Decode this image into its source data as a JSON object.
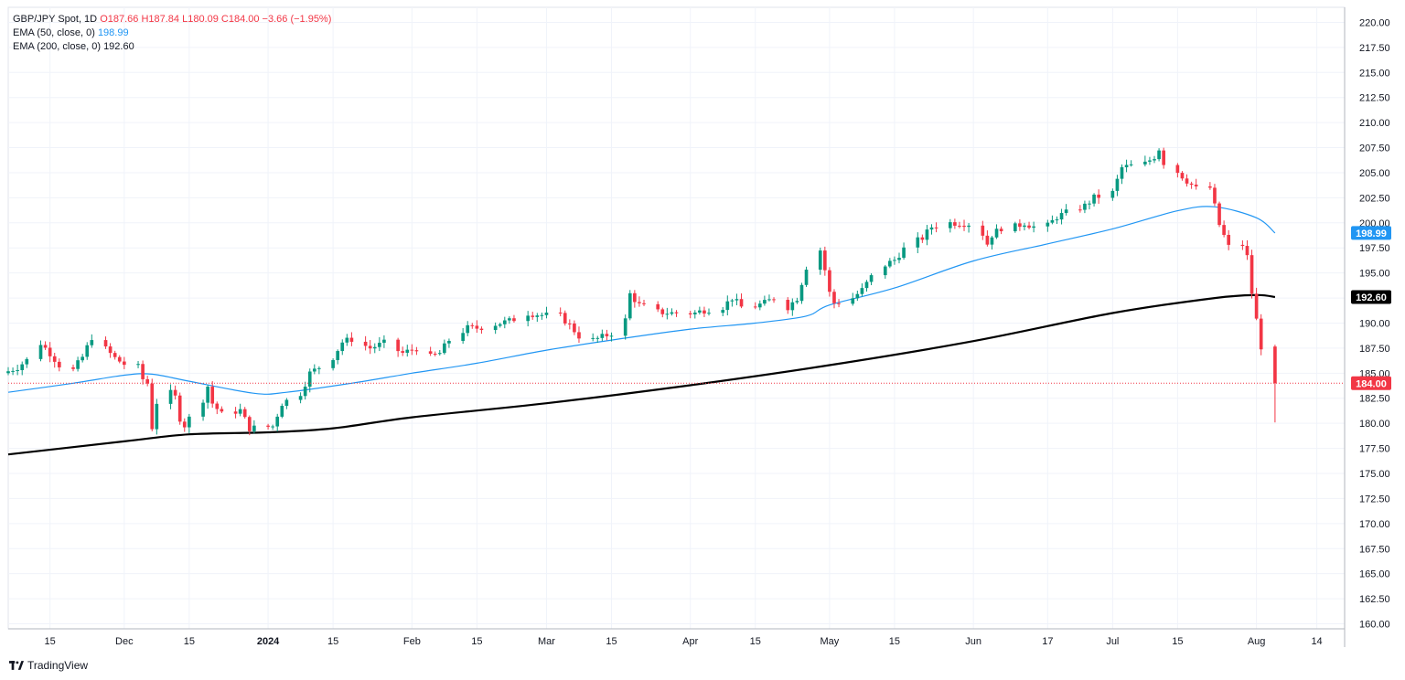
{
  "legend": {
    "symbol": "GBP/JPY Spot, 1D",
    "ohlc": "O187.66  H187.84  L180.09  C184.00  −3.66 (−1.95%)",
    "ema50_label": "EMA (50, close, 0)",
    "ema50_value": "198.99",
    "ema200_label": "EMA (200, close, 0)",
    "ema200_value": "192.60"
  },
  "brand": "TradingView",
  "colors": {
    "up": "#089981",
    "down": "#f23645",
    "ema50": "#2196f3",
    "ema200": "#000000",
    "grid": "#f0f3fa"
  },
  "chart_data": {
    "type": "candlestick",
    "title": "GBP/JPY Spot, 1D",
    "y_axis": {
      "range": [
        159.5,
        221.5
      ],
      "ticks": [
        "220.00",
        "217.50",
        "215.00",
        "212.50",
        "210.00",
        "207.50",
        "205.00",
        "202.50",
        "200.00",
        "197.50",
        "195.00",
        "192.50",
        "190.00",
        "187.50",
        "185.00",
        "182.50",
        "180.00",
        "177.50",
        "175.00",
        "172.50",
        "170.00",
        "167.50",
        "165.00",
        "162.50",
        "160.00"
      ]
    },
    "x_axis": {
      "range": [
        "2023-11-06",
        "2024-08-20"
      ],
      "ticks": [
        {
          "label": "15",
          "date": "2023-11-15",
          "bold": false
        },
        {
          "label": "Dec",
          "date": "2023-12-01",
          "bold": false
        },
        {
          "label": "15",
          "date": "2023-12-15",
          "bold": false
        },
        {
          "label": "2024",
          "date": "2024-01-01",
          "bold": true
        },
        {
          "label": "15",
          "date": "2024-01-15",
          "bold": false
        },
        {
          "label": "Feb",
          "date": "2024-02-01",
          "bold": false
        },
        {
          "label": "15",
          "date": "2024-02-15",
          "bold": false
        },
        {
          "label": "Mar",
          "date": "2024-03-01",
          "bold": false
        },
        {
          "label": "15",
          "date": "2024-03-15",
          "bold": false
        },
        {
          "label": "Apr",
          "date": "2024-04-01",
          "bold": false
        },
        {
          "label": "15",
          "date": "2024-04-15",
          "bold": false
        },
        {
          "label": "May",
          "date": "2024-05-01",
          "bold": false
        },
        {
          "label": "15",
          "date": "2024-05-15",
          "bold": false
        },
        {
          "label": "Jun",
          "date": "2024-06-01",
          "bold": false
        },
        {
          "label": "17",
          "date": "2024-06-17",
          "bold": false
        },
        {
          "label": "Jul",
          "date": "2024-07-01",
          "bold": false
        },
        {
          "label": "15",
          "date": "2024-07-15",
          "bold": false
        },
        {
          "label": "Aug",
          "date": "2024-08-01",
          "bold": false
        },
        {
          "label": "14",
          "date": "2024-08-14",
          "bold": false
        }
      ]
    },
    "last_price": {
      "value": 184.0,
      "label": "184.00"
    },
    "ema50_last": {
      "value": 198.99,
      "label": "198.99"
    },
    "ema200_last": {
      "value": 192.6,
      "label": "192.60"
    },
    "close_path": [
      [
        "2023-11-06",
        185.2
      ],
      [
        "2023-11-08",
        185.6
      ],
      [
        "2023-11-10",
        186.3
      ],
      [
        "2023-11-13",
        188.0
      ],
      [
        "2023-11-15",
        187.0
      ],
      [
        "2023-11-17",
        185.8
      ],
      [
        "2023-11-20",
        185.3
      ],
      [
        "2023-11-22",
        186.6
      ],
      [
        "2023-11-24",
        188.6
      ],
      [
        "2023-11-27",
        187.4
      ],
      [
        "2023-11-29",
        186.5
      ],
      [
        "2023-12-01",
        185.9
      ],
      [
        "2023-12-04",
        185.6
      ],
      [
        "2023-12-05",
        184.4
      ],
      [
        "2023-12-06",
        184.0
      ],
      [
        "2023-12-07",
        179.6
      ],
      [
        "2023-12-08",
        182.1
      ],
      [
        "2023-12-11",
        183.0
      ],
      [
        "2023-12-12",
        182.6
      ],
      [
        "2023-12-13",
        180.5
      ],
      [
        "2023-12-14",
        179.8
      ],
      [
        "2023-12-15",
        180.5
      ],
      [
        "2023-12-18",
        182.4
      ],
      [
        "2023-12-19",
        183.7
      ],
      [
        "2023-12-20",
        182.0
      ],
      [
        "2023-12-22",
        180.9
      ],
      [
        "2023-12-26",
        181.3
      ],
      [
        "2023-12-28",
        179.5
      ],
      [
        "2024-01-02",
        179.7
      ],
      [
        "2024-01-04",
        182.0
      ],
      [
        "2024-01-08",
        183.0
      ],
      [
        "2024-01-10",
        185.0
      ],
      [
        "2024-01-12",
        185.6
      ],
      [
        "2024-01-15",
        186.6
      ],
      [
        "2024-01-17",
        188.1
      ],
      [
        "2024-01-19",
        188.4
      ],
      [
        "2024-01-23",
        187.5
      ],
      [
        "2024-01-26",
        188.0
      ],
      [
        "2024-01-30",
        187.0
      ],
      [
        "2024-02-02",
        187.5
      ],
      [
        "2024-02-05",
        186.6
      ],
      [
        "2024-02-07",
        187.0
      ],
      [
        "2024-02-09",
        188.3
      ],
      [
        "2024-02-13",
        189.5
      ],
      [
        "2024-02-15",
        189.5
      ],
      [
        "2024-02-19",
        189.9
      ],
      [
        "2024-02-22",
        190.2
      ],
      [
        "2024-02-26",
        191.0
      ],
      [
        "2024-02-29",
        190.8
      ],
      [
        "2024-03-04",
        190.7
      ],
      [
        "2024-03-06",
        189.8
      ],
      [
        "2024-03-08",
        188.7
      ],
      [
        "2024-03-11",
        188.3
      ],
      [
        "2024-03-13",
        188.6
      ],
      [
        "2024-03-15",
        189.0
      ],
      [
        "2024-03-18",
        190.3
      ],
      [
        "2024-03-19",
        192.9
      ],
      [
        "2024-03-21",
        191.8
      ],
      [
        "2024-03-25",
        191.1
      ],
      [
        "2024-03-28",
        191.0
      ],
      [
        "2024-04-02",
        191.0
      ],
      [
        "2024-04-04",
        191.3
      ],
      [
        "2024-04-08",
        191.6
      ],
      [
        "2024-04-10",
        192.5
      ],
      [
        "2024-04-12",
        191.6
      ],
      [
        "2024-04-15",
        191.7
      ],
      [
        "2024-04-17",
        192.0
      ],
      [
        "2024-04-19",
        192.5
      ],
      [
        "2024-04-22",
        191.6
      ],
      [
        "2024-04-24",
        192.5
      ],
      [
        "2024-04-26",
        195.6
      ],
      [
        "2024-04-29",
        197.3
      ],
      [
        "2024-04-30",
        195.3
      ],
      [
        "2024-05-01",
        193.0
      ],
      [
        "2024-05-02",
        192.0
      ],
      [
        "2024-05-03",
        192.1
      ],
      [
        "2024-05-06",
        192.5
      ],
      [
        "2024-05-08",
        193.3
      ],
      [
        "2024-05-10",
        194.6
      ],
      [
        "2024-05-13",
        195.8
      ],
      [
        "2024-05-15",
        196.3
      ],
      [
        "2024-05-17",
        197.4
      ],
      [
        "2024-05-21",
        198.5
      ],
      [
        "2024-05-23",
        199.6
      ],
      [
        "2024-05-27",
        200.0
      ],
      [
        "2024-05-29",
        200.0
      ],
      [
        "2024-05-31",
        199.9
      ],
      [
        "2024-06-03",
        198.9
      ],
      [
        "2024-06-04",
        197.9
      ],
      [
        "2024-06-05",
        198.8
      ],
      [
        "2024-06-07",
        199.5
      ],
      [
        "2024-06-10",
        199.6
      ],
      [
        "2024-06-12",
        200.0
      ],
      [
        "2024-06-14",
        199.6
      ],
      [
        "2024-06-17",
        199.7
      ],
      [
        "2024-06-19",
        200.6
      ],
      [
        "2024-06-21",
        201.0
      ],
      [
        "2024-06-25",
        201.7
      ],
      [
        "2024-06-27",
        202.5
      ],
      [
        "2024-07-01",
        203.0
      ],
      [
        "2024-07-03",
        205.5
      ],
      [
        "2024-07-05",
        205.7
      ],
      [
        "2024-07-08",
        205.9
      ],
      [
        "2024-07-10",
        206.6
      ],
      [
        "2024-07-11",
        207.4
      ],
      [
        "2024-07-12",
        206.0
      ],
      [
        "2024-07-15",
        205.1
      ],
      [
        "2024-07-17",
        204.2
      ],
      [
        "2024-07-19",
        203.4
      ],
      [
        "2024-07-22",
        203.5
      ],
      [
        "2024-07-24",
        199.8
      ],
      [
        "2024-07-26",
        197.6
      ],
      [
        "2024-07-29",
        197.8
      ],
      [
        "2024-07-30",
        196.6
      ],
      [
        "2024-07-31",
        193.0
      ],
      [
        "2024-08-01",
        190.3
      ],
      [
        "2024-08-02",
        187.66
      ],
      [
        "2024-08-05",
        184.0
      ]
    ],
    "candles_to_date": "2024-08-05",
    "last_candle": {
      "date": "2024-08-05",
      "open": 187.66,
      "high": 187.84,
      "low": 180.09,
      "close": 184.0
    },
    "ema50": [
      [
        "2023-11-06",
        183.1
      ],
      [
        "2023-11-20",
        184.0
      ],
      [
        "2023-12-01",
        184.8
      ],
      [
        "2023-12-07",
        184.9
      ],
      [
        "2023-12-15",
        184.2
      ],
      [
        "2023-12-29",
        183.0
      ],
      [
        "2024-01-05",
        183.1
      ],
      [
        "2024-01-19",
        184.0
      ],
      [
        "2024-02-01",
        185.0
      ],
      [
        "2024-02-15",
        186.0
      ],
      [
        "2024-03-01",
        187.3
      ],
      [
        "2024-03-15",
        188.3
      ],
      [
        "2024-04-01",
        189.4
      ],
      [
        "2024-04-15",
        190.0
      ],
      [
        "2024-04-26",
        190.7
      ],
      [
        "2024-05-01",
        191.8
      ],
      [
        "2024-05-15",
        193.5
      ],
      [
        "2024-06-01",
        196.2
      ],
      [
        "2024-06-17",
        197.9
      ],
      [
        "2024-07-01",
        199.4
      ],
      [
        "2024-07-15",
        201.2
      ],
      [
        "2024-07-23",
        201.6
      ],
      [
        "2024-08-01",
        200.5
      ],
      [
        "2024-08-05",
        198.99
      ]
    ],
    "ema200": [
      [
        "2023-11-06",
        176.9
      ],
      [
        "2023-12-01",
        178.2
      ],
      [
        "2023-12-15",
        178.9
      ],
      [
        "2024-01-01",
        179.1
      ],
      [
        "2024-01-15",
        179.5
      ],
      [
        "2024-02-01",
        180.6
      ],
      [
        "2024-03-01",
        182.0
      ],
      [
        "2024-04-01",
        183.8
      ],
      [
        "2024-05-01",
        185.8
      ],
      [
        "2024-06-01",
        188.2
      ],
      [
        "2024-07-01",
        191.0
      ],
      [
        "2024-07-23",
        192.5
      ],
      [
        "2024-08-01",
        192.8
      ],
      [
        "2024-08-05",
        192.6
      ]
    ]
  }
}
